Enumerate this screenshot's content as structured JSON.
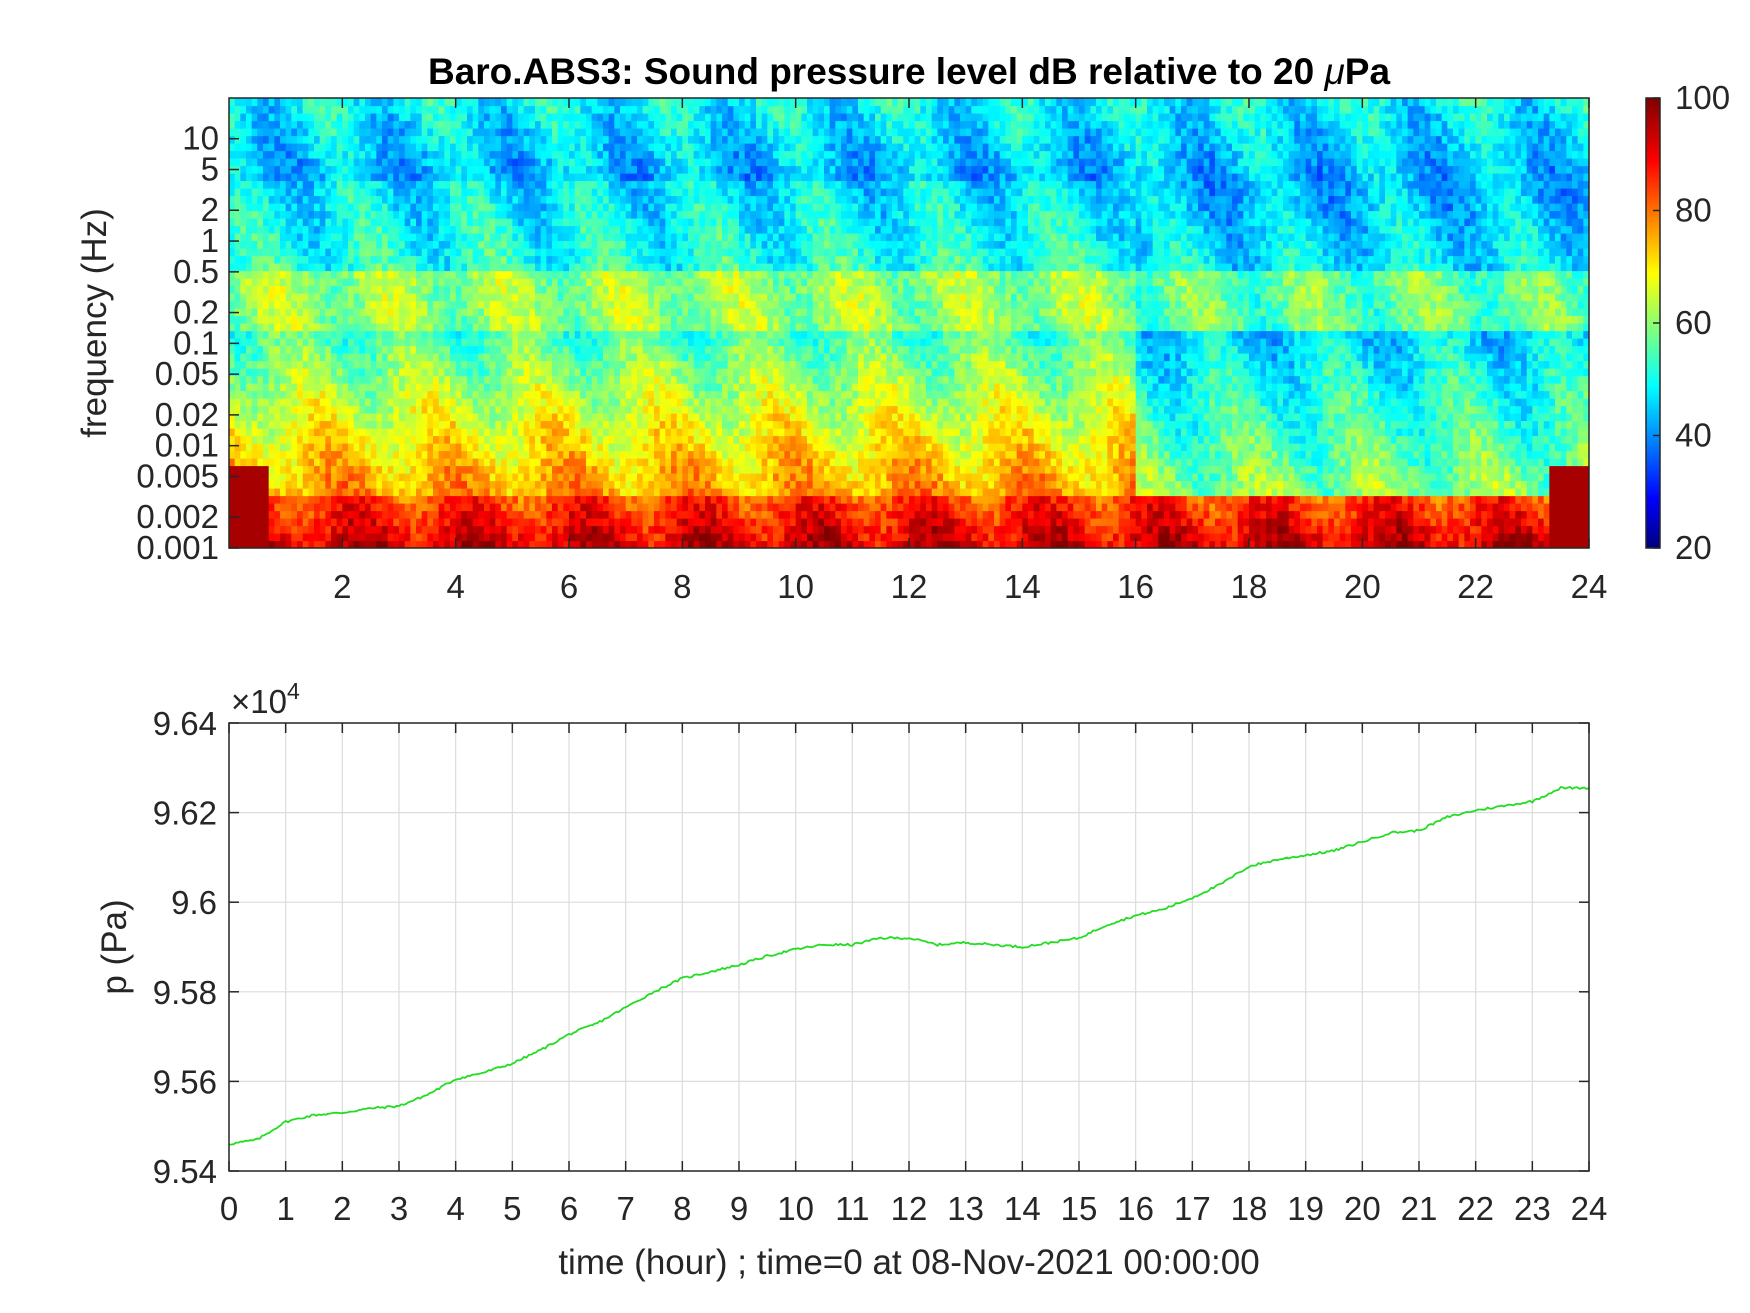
{
  "chart_data": [
    {
      "type": "heatmap",
      "title": "Baro.ABS3: Sound pressure level dB relative to 20 μPa",
      "title_parts": [
        "Baro.ABS3: Sound pressure level dB relative to 20 ",
        "μ",
        "Pa"
      ],
      "xlabel": "",
      "ylabel": "frequency (Hz)",
      "x_ticks": [
        "2",
        "4",
        "6",
        "8",
        "10",
        "12",
        "14",
        "16",
        "18",
        "20",
        "22",
        "24"
      ],
      "x_tick_values": [
        2,
        4,
        6,
        8,
        10,
        12,
        14,
        16,
        18,
        20,
        22,
        24
      ],
      "xlim": [
        0,
        24
      ],
      "y_ticks": [
        "10",
        "5",
        "2",
        "1",
        "0.5",
        "0.2",
        "0.1",
        "0.05",
        "0.02",
        "0.01",
        "0.005",
        "0.002",
        "0.001"
      ],
      "y_tick_values": [
        10,
        5,
        2,
        1,
        0.5,
        0.2,
        0.1,
        0.05,
        0.02,
        0.01,
        0.005,
        0.002,
        0.001
      ],
      "y_scale": "log",
      "ylim": [
        0.001,
        25
      ],
      "colormap": "jet",
      "colorbar": {
        "ticks": [
          "100",
          "80",
          "60",
          "40",
          "20"
        ],
        "tick_values": [
          100,
          80,
          60,
          40,
          20
        ],
        "range": [
          20,
          100
        ]
      },
      "description_of_levels": {
        "high_freq_band_db": 48,
        "mid_band_db_before_16h": 56,
        "mid_band_db_after_16h": 47,
        "line_0p2hz_db": 62,
        "low_freq_db": 85,
        "lowest_freq_db": 93,
        "change_time_hour": 16
      }
    },
    {
      "type": "line",
      "title": "",
      "xlabel": "time (hour) ; time=0 at 08-Nov-2021 00:00:00",
      "ylabel": "p (Pa)",
      "y_exponent_base": "×10",
      "y_exponent": "4",
      "x_ticks": [
        "0",
        "1",
        "2",
        "3",
        "4",
        "5",
        "6",
        "7",
        "8",
        "9",
        "10",
        "11",
        "12",
        "13",
        "14",
        "15",
        "16",
        "17",
        "18",
        "19",
        "20",
        "21",
        "22",
        "23",
        "24"
      ],
      "y_ticks": [
        "9.64",
        "9.62",
        "9.6",
        "9.58",
        "9.56",
        "9.54"
      ],
      "y_tick_values": [
        96400,
        96200,
        96000,
        95800,
        95600,
        95400
      ],
      "xlim": [
        0,
        24
      ],
      "ylim": [
        95400,
        96400
      ],
      "grid": true,
      "series": [
        {
          "color": "#22dd22",
          "x": [
            0,
            0.5,
            1,
            1.5,
            2,
            2.5,
            3,
            3.5,
            4,
            4.5,
            5,
            5.5,
            6,
            6.5,
            7,
            7.5,
            8,
            8.5,
            9,
            9.5,
            10,
            10.5,
            11,
            11.5,
            12,
            12.5,
            13,
            13.5,
            14,
            14.5,
            15,
            15.5,
            16,
            16.5,
            17,
            17.5,
            18,
            18.5,
            19,
            19.5,
            20,
            20.5,
            21,
            21.5,
            22,
            22.5,
            23,
            23.5,
            24
          ],
          "y": [
            95460,
            95470,
            95510,
            95525,
            95530,
            95540,
            95545,
            95570,
            95605,
            95620,
            95640,
            95670,
            95705,
            95730,
            95765,
            95800,
            95830,
            95845,
            95860,
            95880,
            95895,
            95905,
            95905,
            95920,
            95920,
            95905,
            95910,
            95905,
            95900,
            95910,
            95920,
            95950,
            95970,
            95985,
            96010,
            96040,
            96080,
            96095,
            96105,
            96115,
            96135,
            96155,
            96160,
            96190,
            96205,
            96215,
            96225,
            96255,
            96255
          ]
        }
      ]
    }
  ]
}
